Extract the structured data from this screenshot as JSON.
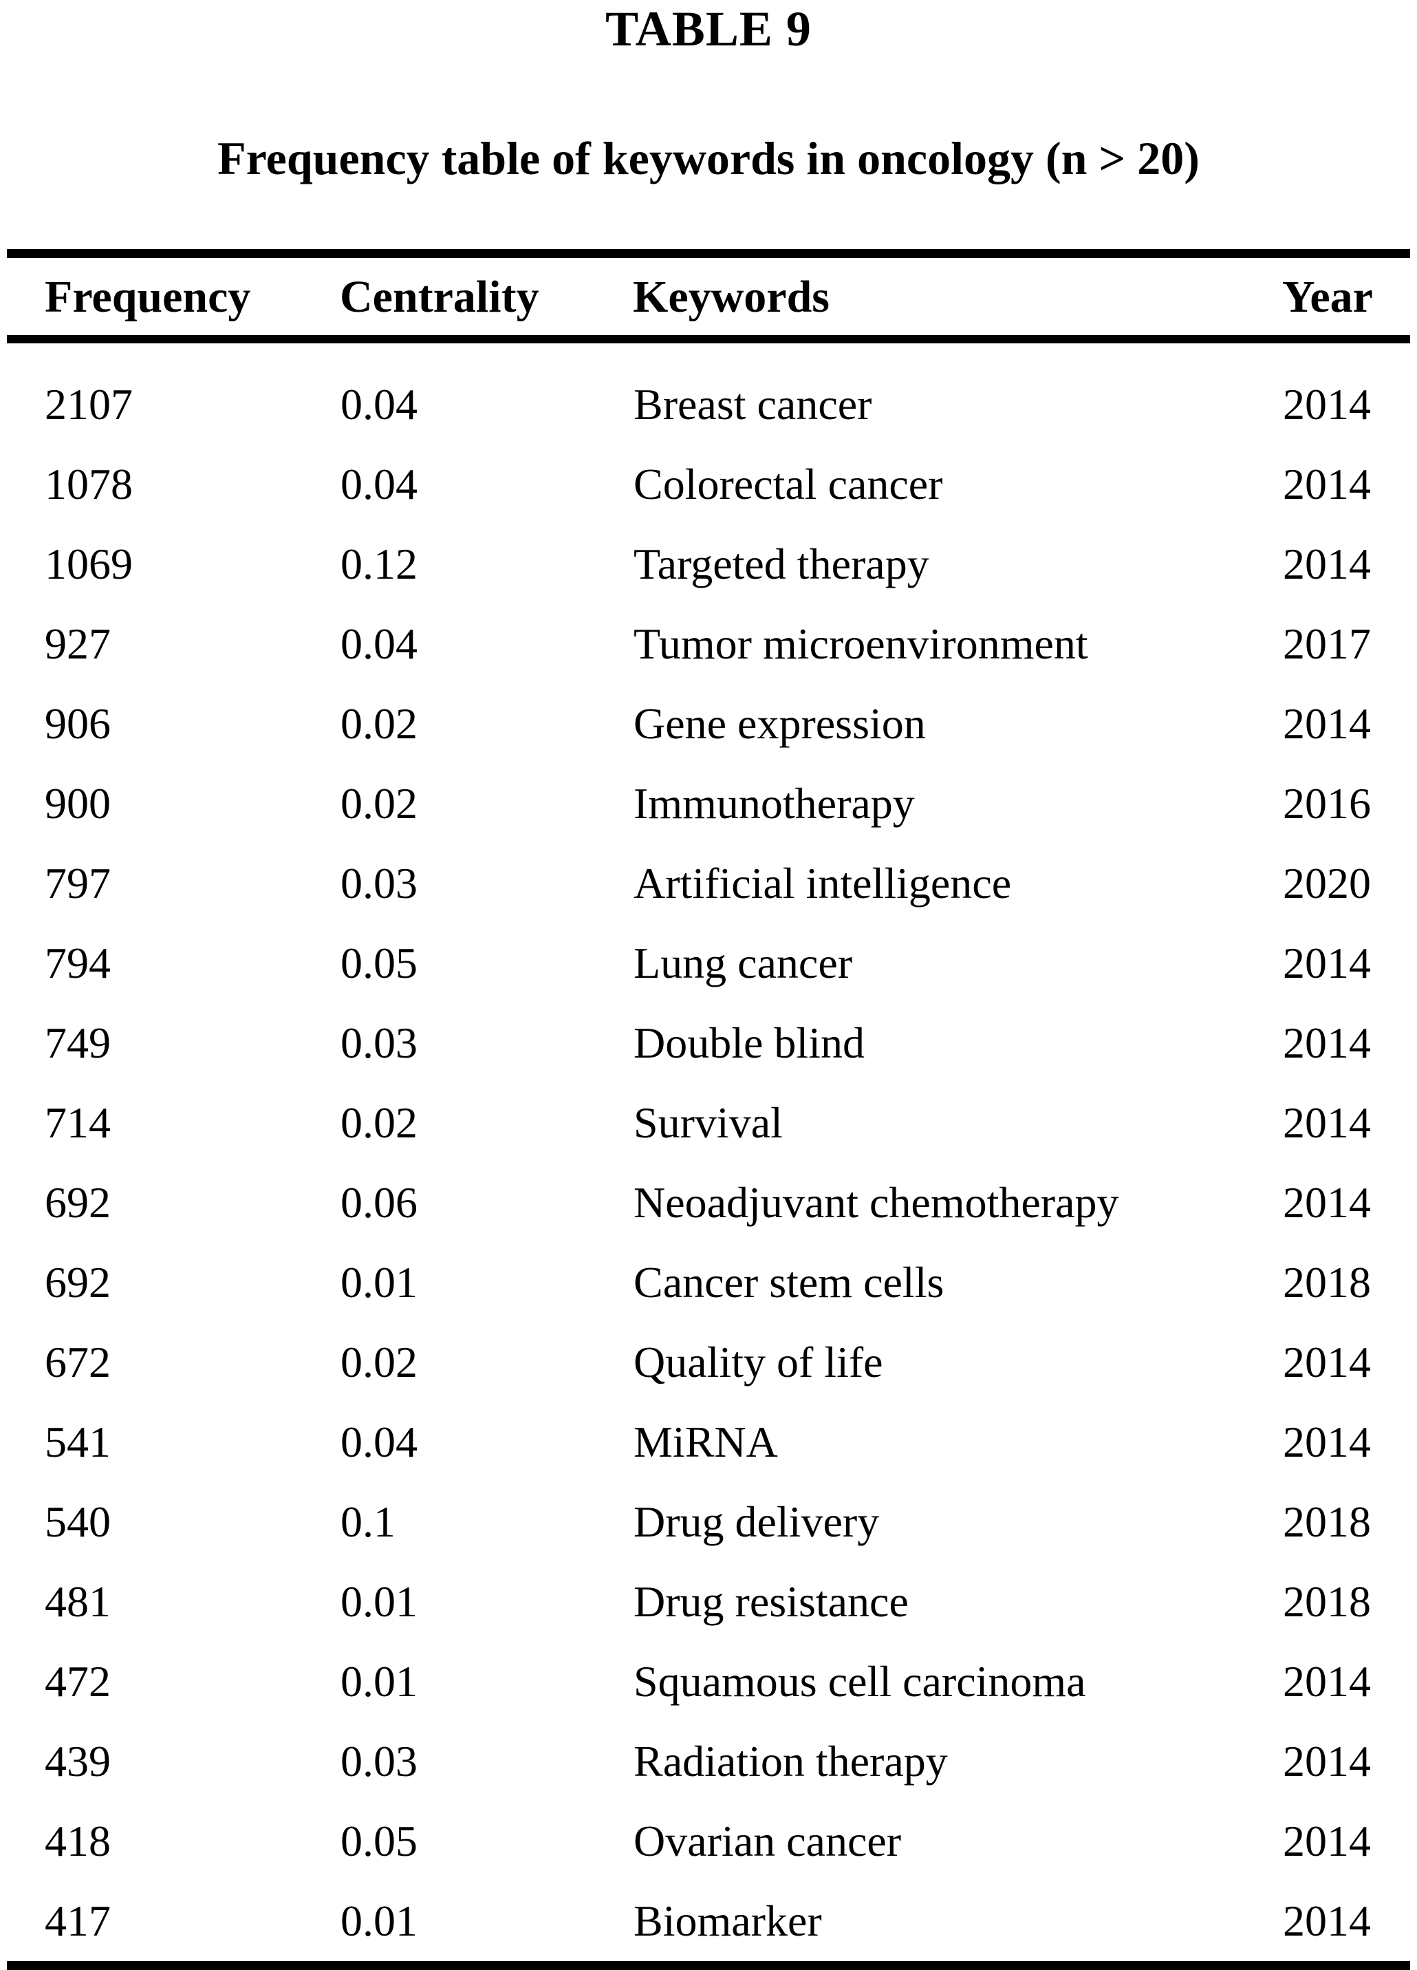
{
  "page": {
    "label": "TABLE 9",
    "caption": "Frequency table of keywords in oncology (n > 20)"
  },
  "table": {
    "columns": [
      "Frequency",
      "Centrality",
      "Keywords",
      "Year"
    ],
    "rows": [
      [
        "2107",
        "0.04",
        "Breast cancer",
        "2014"
      ],
      [
        "1078",
        "0.04",
        "Colorectal cancer",
        "2014"
      ],
      [
        "1069",
        "0.12",
        "Targeted therapy",
        "2014"
      ],
      [
        "927",
        "0.04",
        "Tumor microenvironment",
        "2017"
      ],
      [
        "906",
        "0.02",
        "Gene expression",
        "2014"
      ],
      [
        "900",
        "0.02",
        "Immunotherapy",
        "2016"
      ],
      [
        "797",
        "0.03",
        "Artificial intelligence",
        "2020"
      ],
      [
        "794",
        "0.05",
        "Lung cancer",
        "2014"
      ],
      [
        "749",
        "0.03",
        "Double blind",
        "2014"
      ],
      [
        "714",
        "0.02",
        "Survival",
        "2014"
      ],
      [
        "692",
        "0.06",
        "Neoadjuvant chemotherapy",
        "2014"
      ],
      [
        "692",
        "0.01",
        "Cancer stem cells",
        "2018"
      ],
      [
        "672",
        "0.02",
        "Quality of life",
        "2014"
      ],
      [
        "541",
        "0.04",
        "MiRNA",
        "2014"
      ],
      [
        "540",
        "0.1",
        "Drug delivery",
        "2018"
      ],
      [
        "481",
        "0.01",
        "Drug resistance",
        "2018"
      ],
      [
        "472",
        "0.01",
        "Squamous cell carcinoma",
        "2014"
      ],
      [
        "439",
        "0.03",
        "Radiation therapy",
        "2014"
      ],
      [
        "418",
        "0.05",
        "Ovarian cancer",
        "2014"
      ],
      [
        "417",
        "0.01",
        "Biomarker",
        "2014"
      ]
    ]
  },
  "colors": {
    "text": "#000000",
    "background": "#ffffff",
    "rule": "#000000"
  }
}
